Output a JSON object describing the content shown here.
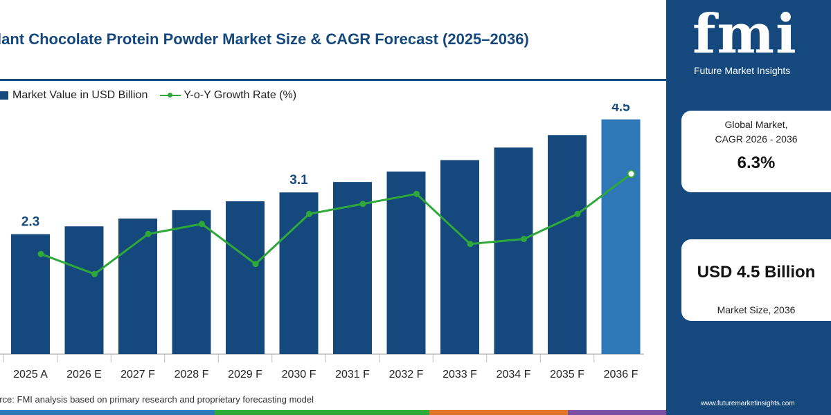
{
  "header": {
    "title": "lant Chocolate Protein Powder Market Size & CAGR Forecast (2025–2036)"
  },
  "legend": {
    "bar_label": "Market Value in USD Billion",
    "line_label": "Y-o-Y Growth Rate (%)"
  },
  "chart_data": {
    "type": "bar",
    "categories": [
      "2025 A",
      "2026 E",
      "2027 F",
      "2028 F",
      "2029 F",
      "2030 F",
      "2031 F",
      "2032 F",
      "2033 F",
      "2034 F",
      "2035 F",
      "2036 F"
    ],
    "series": [
      {
        "name": "Market Value in USD Billion",
        "type": "bar",
        "values": [
          2.3,
          2.45,
          2.6,
          2.76,
          2.93,
          3.1,
          3.3,
          3.5,
          3.72,
          3.96,
          4.2,
          4.5
        ],
        "data_labels": {
          "0": "2.3",
          "5": "3.1",
          "11": "4.5"
        }
      },
      {
        "name": "Y-o-Y Growth Rate (%)",
        "type": "line",
        "values": [
          6.0,
          5.8,
          6.2,
          6.3,
          5.9,
          6.4,
          6.5,
          6.6,
          6.1,
          6.15,
          6.4,
          6.8
        ]
      }
    ],
    "ylim": [
      0,
      4.8
    ],
    "line_ylim": [
      5.0,
      7.5
    ],
    "colors": {
      "bar": "#15497e",
      "bar_highlight": "#2e78b8",
      "line": "#2fa83a"
    },
    "grid": false
  },
  "source": {
    "text": "urce: FMI analysis based on primary research and proprietary forecasting model"
  },
  "sidebar": {
    "logo_text": "fmi",
    "logo_tagline": "Future Market Insights",
    "cagr_label_line1": "Global Market,",
    "cagr_label_line2": "CAGR 2026 - 2036",
    "cagr_value": "6.3%",
    "size_value": "USD 4.5 Billion",
    "size_label": "Market Size, 2036",
    "website": "www.futuremarketinsights.com"
  },
  "bottom_bar_colors": [
    "#2e78b8",
    "#2fa83a",
    "#e0732a",
    "#7c4fa0"
  ]
}
